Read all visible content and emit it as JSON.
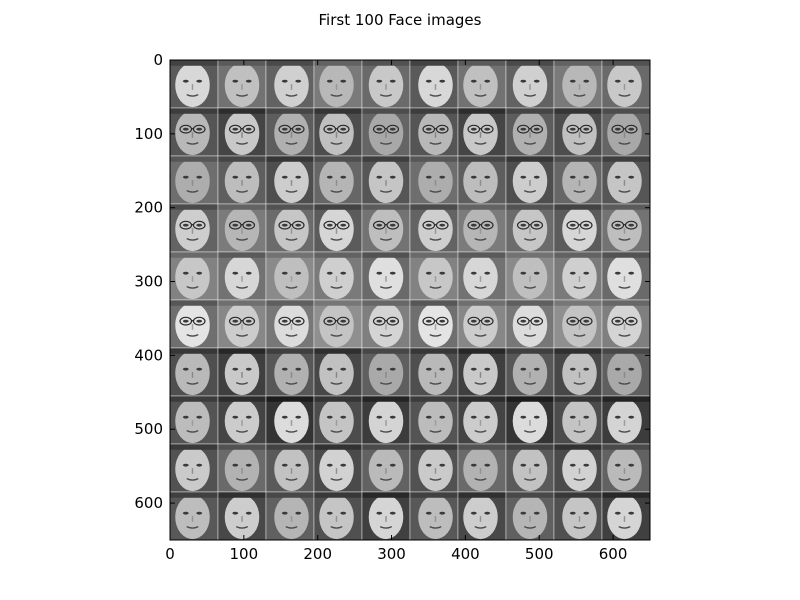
{
  "figure": {
    "title": "First 100 Face images",
    "grid_rows": 10,
    "grid_cols": 10,
    "image_extent": [
      650,
      650
    ],
    "x_ticks": [
      "0",
      "100",
      "200",
      "300",
      "400",
      "500",
      "600"
    ],
    "y_ticks": [
      "0",
      "100",
      "200",
      "300",
      "400",
      "500",
      "600"
    ],
    "colormap": "gray",
    "row_tones": [
      {
        "bg": "#6a6a6a",
        "face": "#c8c8c8",
        "glasses": false
      },
      {
        "bg": "#555555",
        "face": "#b8b8b8",
        "glasses": true
      },
      {
        "bg": "#5e5e5e",
        "face": "#bdbdbd",
        "glasses": false
      },
      {
        "bg": "#6b6b6b",
        "face": "#c6c6c6",
        "glasses": true
      },
      {
        "bg": "#7a7a7a",
        "face": "#cfcfcf",
        "glasses": false
      },
      {
        "bg": "#7f7f7f",
        "face": "#d4d4d4",
        "glasses": true
      },
      {
        "bg": "#4f4f4f",
        "face": "#b9b9b9",
        "glasses": false
      },
      {
        "bg": "#444444",
        "face": "#cccccc",
        "glasses": false
      },
      {
        "bg": "#5a5a5a",
        "face": "#c2c2c2",
        "glasses": false
      },
      {
        "bg": "#505050",
        "face": "#c5c5c5",
        "glasses": false
      }
    ]
  }
}
